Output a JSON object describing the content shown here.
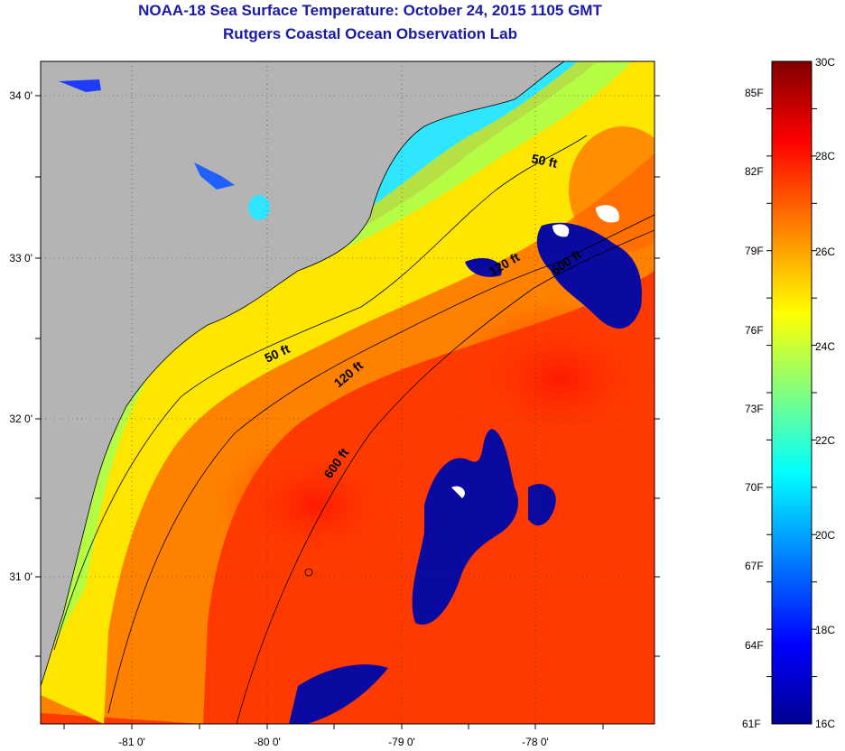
{
  "title": {
    "line1": "NOAA-18 Sea Surface Temperature:  October 24, 2015 1105 GMT",
    "line2": "Rutgers Coastal Ocean Observation Lab"
  },
  "axes": {
    "lon_labels": [
      "-81 0'",
      "-80 0'",
      "-79 0'",
      "-78 0'"
    ],
    "lat_labels": [
      "34 0'",
      "33 0'",
      "32 0'",
      "31 0'"
    ]
  },
  "contours": {
    "shallow": "50 ft",
    "mid": "120 ft",
    "deep": "600 ft"
  },
  "colorbar": {
    "fahrenheit": [
      "85F",
      "82F",
      "79F",
      "76F",
      "73F",
      "70F",
      "67F",
      "64F",
      "61F"
    ],
    "celsius": [
      "30C",
      "28C",
      "26C",
      "24C",
      "22C",
      "20C",
      "18C",
      "16C"
    ],
    "colors": [
      "#00008f",
      "#0000ff",
      "#0080ff",
      "#00ffff",
      "#80ff80",
      "#ffff00",
      "#ff8000",
      "#ff0000",
      "#800000"
    ]
  }
}
